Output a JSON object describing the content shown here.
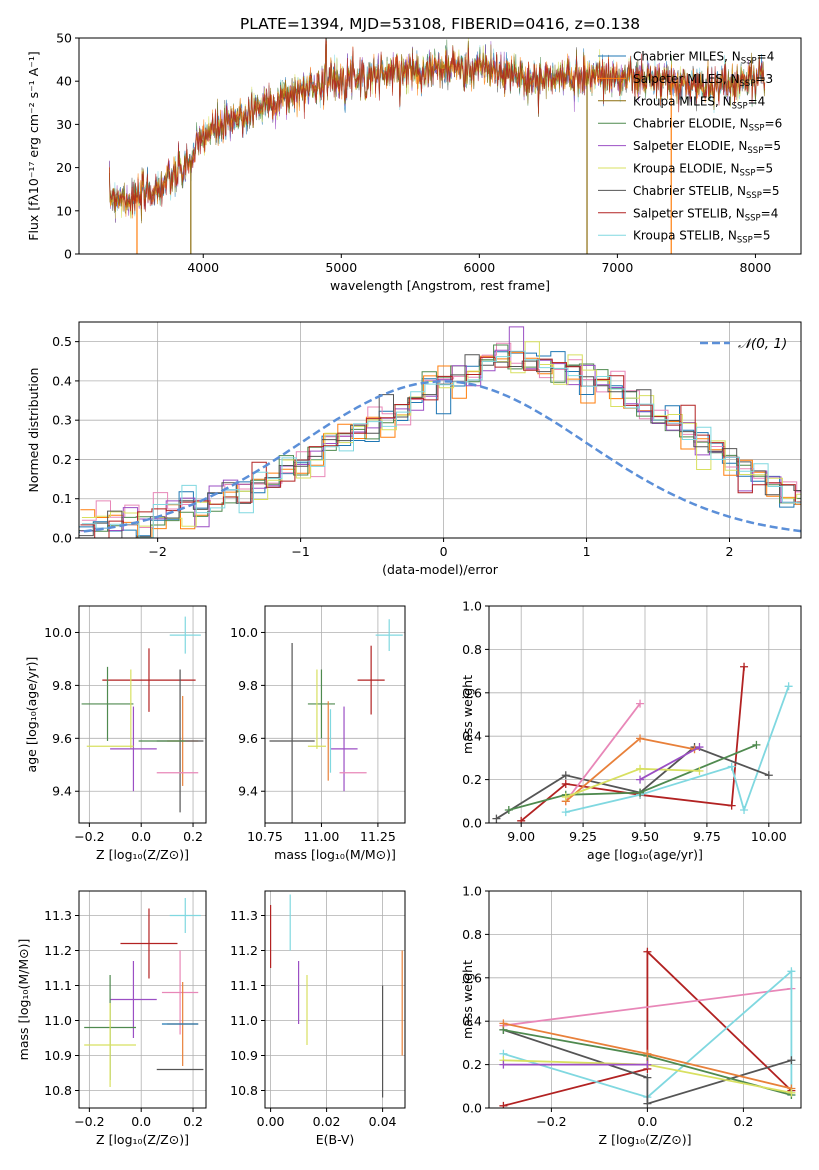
{
  "colors": {
    "Chabrier MILES": "#1f77b4",
    "Salpeter MILES": "#ff7f0e",
    "Kroupa MILES": "#8c6d0e",
    "Chabrier ELODIE": "#4f8a4f",
    "Salpeter ELODIE": "#9b4fc4",
    "Kroupa ELODIE": "#d8e060",
    "Chabrier STELIB": "#555555",
    "Salpeter STELIB": "#b22222",
    "Kroupa STELIB": "#80d8e0",
    "pink": "#e887b8",
    "orange": "#e8803a",
    "gauss": "#5b8fd8"
  },
  "chart_data": [
    {
      "id": "spectrum",
      "type": "line",
      "title": "PLATE=1394, MJD=53108, FIBERID=0416, z=0.138",
      "xlabel": "wavelength [Angstrom, rest frame]",
      "ylabel": "Flux [fλ10⁻¹⁷ erg cm⁻² s⁻¹ A⁻¹]",
      "xlim": [
        3100,
        8330
      ],
      "ylim": [
        0,
        50
      ],
      "xticks": [
        4000,
        5000,
        6000,
        7000,
        8000
      ],
      "yticks": [
        0,
        10,
        20,
        30,
        40,
        50
      ],
      "legend_position": "top-right",
      "continuum_x": [
        3320,
        3500,
        3700,
        3900,
        4000,
        4200,
        4400,
        4600,
        4800,
        5000,
        5200,
        5500,
        5800,
        6000,
        6200,
        6400,
        6600,
        6800,
        7000,
        7200,
        7400,
        7600,
        7800,
        8070
      ],
      "continuum_y": [
        13.5,
        12.8,
        15.5,
        21,
        27.5,
        30.5,
        34,
        36.5,
        39,
        41,
        41.5,
        42.5,
        43,
        43.5,
        41.5,
        40,
        41,
        41.5,
        41,
        40.5,
        39.5,
        39,
        39.5,
        41
      ],
      "features": [
        {
          "x": 4890,
          "y": 49.5,
          "label": ""
        },
        {
          "x": 5180,
          "y": 36.5,
          "label": ""
        },
        {
          "x": 5890,
          "y": 38.5,
          "label": ""
        }
      ],
      "drops": [
        {
          "x": 3520,
          "series": "Salpeter MILES"
        },
        {
          "x": 3910,
          "series": "Kroupa MILES"
        },
        {
          "x": 6780,
          "series": "Kroupa MILES"
        },
        {
          "x": 7390,
          "series": "Salpeter MILES"
        }
      ],
      "series": [
        {
          "name": "Chabrier MILES, N<sub>SSP</sub>=4",
          "label_main": "Chabrier MILES, N",
          "label_sub": "SSP",
          "label_tail": "=4"
        },
        {
          "name": "Salpeter MILES, N_SSP=3",
          "label_main": "Salpeter MILES, N",
          "label_sub": "SSP",
          "label_tail": "=3"
        },
        {
          "name": "Kroupa MILES, N_SSP=4",
          "label_main": "Kroupa MILES, N",
          "label_sub": "SSP",
          "label_tail": "=4"
        },
        {
          "name": "Chabrier ELODIE, N_SSP=6",
          "label_main": "Chabrier ELODIE, N",
          "label_sub": "SSP",
          "label_tail": "=6"
        },
        {
          "name": "Salpeter ELODIE, N_SSP=5",
          "label_main": "Salpeter ELODIE, N",
          "label_sub": "SSP",
          "label_tail": "=5"
        },
        {
          "name": "Kroupa ELODIE, N_SSP=5",
          "label_main": "Kroupa ELODIE, N",
          "label_sub": "SSP",
          "label_tail": "=5"
        },
        {
          "name": "Chabrier STELIB, N_SSP=5",
          "label_main": "Chabrier STELIB, N",
          "label_sub": "SSP",
          "label_tail": "=5"
        },
        {
          "name": "Salpeter STELIB, N_SSP=4",
          "label_main": "Salpeter STELIB, N",
          "label_sub": "SSP",
          "label_tail": "=4"
        },
        {
          "name": "Kroupa STELIB, N_SSP=5",
          "label_main": "Kroupa STELIB, N",
          "label_sub": "SSP",
          "label_tail": "=5"
        }
      ]
    },
    {
      "id": "histogram",
      "type": "bar",
      "xlabel": "(data-model)/error",
      "ylabel": "Normed distribution",
      "xlim": [
        -2.55,
        2.5
      ],
      "ylim": [
        0,
        0.55
      ],
      "xticks": [
        -2,
        -1,
        0,
        1,
        2
      ],
      "yticks": [
        0.0,
        0.1,
        0.2,
        0.3,
        0.4,
        0.5
      ],
      "legend": "𝒩(0, 1)",
      "bin_width": 0.1,
      "bin_start": -2.55,
      "profile": [
        0.03,
        0.03,
        0.035,
        0.04,
        0.045,
        0.05,
        0.06,
        0.07,
        0.08,
        0.09,
        0.11,
        0.12,
        0.13,
        0.15,
        0.17,
        0.19,
        0.21,
        0.23,
        0.25,
        0.27,
        0.29,
        0.31,
        0.33,
        0.35,
        0.38,
        0.4,
        0.41,
        0.42,
        0.44,
        0.45,
        0.47,
        0.45,
        0.44,
        0.43,
        0.42,
        0.41,
        0.4,
        0.38,
        0.36,
        0.34,
        0.32,
        0.29,
        0.27,
        0.24,
        0.22,
        0.19,
        0.17,
        0.15,
        0.13,
        0.11,
        0.095,
        0.08,
        0.07,
        0.06,
        0.05,
        0.04,
        0.035,
        0.03,
        0.025,
        0.02,
        0.015
      ]
    },
    {
      "id": "age_vs_Z",
      "type": "scatter",
      "xlabel": "Z [log₁₀(Z/Z⊙)]",
      "ylabel": "age  [log₁₀(age/yr)]",
      "xlim": [
        -0.24,
        0.25
      ],
      "ylim": [
        9.28,
        10.1
      ],
      "xticks": [
        -0.2,
        0.0,
        0.2
      ],
      "yticks": [
        9.4,
        9.6,
        9.8,
        10.0
      ],
      "points": [
        {
          "c": "#80d8e0",
          "x": 0.17,
          "y": 9.99,
          "xe": 0.06,
          "ye": 0.07
        },
        {
          "c": "#b22222",
          "x": 0.03,
          "y": 9.82,
          "xe": 0.18,
          "ye": 0.12
        },
        {
          "c": "#4f8a4f",
          "x": -0.13,
          "y": 9.73,
          "xe": 0.1,
          "ye": 0.14
        },
        {
          "c": "#d8e060",
          "x": -0.04,
          "y": 9.71,
          "xe": 0.0,
          "ye": 0.15
        },
        {
          "c": "#e8803a",
          "x": 0.16,
          "y": 9.59,
          "xe": 0.06,
          "ye": 0.17
        },
        {
          "c": "#555555",
          "x": 0.15,
          "y": 9.59,
          "xe": 0.09,
          "ye": 0.27
        },
        {
          "c": "#9b4fc4",
          "x": -0.03,
          "y": 9.56,
          "xe": 0.09,
          "ye": 0.16
        },
        {
          "c": "#d8e060",
          "x": -0.12,
          "y": 9.57,
          "xe": 0.09,
          "ye": 0.0
        },
        {
          "c": "#e887b8",
          "x": 0.14,
          "y": 9.47,
          "xe": 0.08,
          "ye": 0.0
        },
        {
          "c": "#4f8a4f",
          "x": 0.08,
          "y": 9.59,
          "xe": 0.09,
          "ye": 0.0
        }
      ]
    },
    {
      "id": "age_vs_mass",
      "type": "scatter",
      "xlabel": "mass [log₁₀(M/M⊙)]",
      "ylabel": "",
      "xlim": [
        10.75,
        11.37
      ],
      "ylim": [
        9.28,
        10.1
      ],
      "xticks": [
        10.75,
        11.0,
        11.25
      ],
      "yticks": [
        9.4,
        9.6,
        9.8,
        10.0
      ],
      "points": [
        {
          "c": "#80d8e0",
          "x": 11.3,
          "y": 9.99,
          "xe": 0.06,
          "ye": 0.06
        },
        {
          "c": "#b22222",
          "x": 11.22,
          "y": 9.82,
          "xe": 0.06,
          "ye": 0.13
        },
        {
          "c": "#4f8a4f",
          "x": 11.0,
          "y": 9.73,
          "xe": 0.06,
          "ye": 0.13
        },
        {
          "c": "#d8e060",
          "x": 10.98,
          "y": 9.71,
          "xe": 0.0,
          "ye": 0.15
        },
        {
          "c": "#555555",
          "x": 10.87,
          "y": 9.59,
          "xe": 0.1,
          "ye": 0.37
        },
        {
          "c": "#e8803a",
          "x": 11.03,
          "y": 9.59,
          "xe": 0.0,
          "ye": 0.15
        },
        {
          "c": "#9b4fc4",
          "x": 11.1,
          "y": 9.56,
          "xe": 0.06,
          "ye": 0.16
        },
        {
          "c": "#d8e060",
          "x": 10.98,
          "y": 9.57,
          "xe": 0.04,
          "ye": 0.0
        },
        {
          "c": "#e887b8",
          "x": 11.14,
          "y": 9.47,
          "xe": 0.06,
          "ye": 0.0
        },
        {
          "c": "#80d8e0",
          "x": 11.04,
          "y": 9.59,
          "xe": 0.0,
          "ye": 0.12
        }
      ]
    },
    {
      "id": "weight_vs_age",
      "type": "line",
      "xlabel": "age  [log₁₀(age/yr)]",
      "ylabel": "mass weight",
      "xlim": [
        8.87,
        10.13
      ],
      "ylim": [
        0,
        1
      ],
      "xticks": [
        9.0,
        9.25,
        9.5,
        9.75,
        10.0
      ],
      "yticks": [
        0.0,
        0.2,
        0.4,
        0.6,
        0.8,
        1.0
      ],
      "series": [
        {
          "c": "#b22222",
          "x": [
            9.0,
            9.18,
            9.48,
            9.85,
            9.9
          ],
          "y": [
            0.01,
            0.18,
            0.13,
            0.08,
            0.72
          ]
        },
        {
          "c": "#80d8e0",
          "x": [
            9.18,
            9.48,
            9.85,
            9.9,
            10.08
          ],
          "y": [
            0.05,
            0.13,
            0.26,
            0.06,
            0.63
          ]
        },
        {
          "c": "#555555",
          "x": [
            8.9,
            9.18,
            9.48,
            9.7,
            10.0
          ],
          "y": [
            0.02,
            0.22,
            0.14,
            0.35,
            0.22
          ]
        },
        {
          "c": "#4f8a4f",
          "x": [
            8.95,
            9.18,
            9.48,
            9.95
          ],
          "y": [
            0.06,
            0.13,
            0.14,
            0.36
          ]
        },
        {
          "c": "#e887b8",
          "x": [
            9.18,
            9.48
          ],
          "y": [
            0.1,
            0.55
          ]
        },
        {
          "c": "#e8803a",
          "x": [
            9.18,
            9.48,
            9.7
          ],
          "y": [
            0.1,
            0.39,
            0.34
          ]
        },
        {
          "c": "#d8e060",
          "x": [
            9.18,
            9.48,
            9.72
          ],
          "y": [
            0.12,
            0.25,
            0.24
          ]
        },
        {
          "c": "#9b4fc4",
          "x": [
            9.48,
            9.72
          ],
          "y": [
            0.2,
            0.35
          ]
        }
      ]
    },
    {
      "id": "mass_vs_Z",
      "type": "scatter",
      "xlabel": "Z [log₁₀(Z/Z⊙)]",
      "ylabel": "mass [log₁₀(M/M⊙)]",
      "xlim": [
        -0.24,
        0.25
      ],
      "ylim": [
        10.75,
        11.37
      ],
      "xticks": [
        -0.2,
        0.0,
        0.2
      ],
      "yticks": [
        10.8,
        10.9,
        11.0,
        11.1,
        11.2,
        11.3
      ],
      "points": [
        {
          "c": "#80d8e0",
          "x": 0.17,
          "y": 11.3,
          "xe": 0.06,
          "ye": 0.05
        },
        {
          "c": "#b22222",
          "x": 0.03,
          "y": 11.22,
          "xe": 0.11,
          "ye": 0.1
        },
        {
          "c": "#e887b8",
          "x": 0.15,
          "y": 11.08,
          "xe": 0.07,
          "ye": 0.12
        },
        {
          "c": "#9b4fc4",
          "x": -0.03,
          "y": 11.06,
          "xe": 0.09,
          "ye": 0.11
        },
        {
          "c": "#4f8a4f",
          "x": -0.12,
          "y": 10.98,
          "xe": 0.1,
          "ye": 0.15
        },
        {
          "c": "#e8803a",
          "x": 0.16,
          "y": 10.99,
          "xe": 0.06,
          "ye": 0.12
        },
        {
          "c": "#1f77b4",
          "x": 0.15,
          "y": 10.99,
          "xe": 0.07,
          "ye": 0.0
        },
        {
          "c": "#d8e060",
          "x": -0.12,
          "y": 10.93,
          "xe": 0.1,
          "ye": 0.12
        },
        {
          "c": "#555555",
          "x": 0.15,
          "y": 10.86,
          "xe": 0.09,
          "ye": 0.0
        }
      ]
    },
    {
      "id": "mass_vs_ebv",
      "type": "scatter",
      "xlabel": "E(B-V)",
      "ylabel": "",
      "xlim": [
        -0.002,
        0.048
      ],
      "ylim": [
        10.75,
        11.37
      ],
      "xticks": [
        0.0,
        0.02,
        0.04
      ],
      "yticks": [
        10.8,
        10.9,
        11.0,
        11.1,
        11.2,
        11.3
      ],
      "points": [
        {
          "c": "#b22222",
          "x": 0.0,
          "y": 11.24,
          "xe": 0.0,
          "ye": 0.09
        },
        {
          "c": "#80d8e0",
          "x": 0.007,
          "y": 11.28,
          "xe": 0.0,
          "ye": 0.08
        },
        {
          "c": "#9b4fc4",
          "x": 0.01,
          "y": 11.08,
          "xe": 0.0,
          "ye": 0.09
        },
        {
          "c": "#d8e060",
          "x": 0.013,
          "y": 11.03,
          "xe": 0.0,
          "ye": 0.1
        },
        {
          "c": "#555555",
          "x": 0.04,
          "y": 10.94,
          "xe": 0.0,
          "ye": 0.16
        },
        {
          "c": "#e8803a",
          "x": 0.047,
          "y": 11.05,
          "xe": 0.0,
          "ye": 0.15
        }
      ]
    },
    {
      "id": "weight_vs_Z",
      "type": "line",
      "xlabel": "Z [log₁₀(Z/Z⊙)]",
      "ylabel": "mass weight",
      "xlim": [
        -0.33,
        0.32
      ],
      "ylim": [
        0,
        1
      ],
      "xticks": [
        -0.2,
        0.0,
        0.2
      ],
      "yticks": [
        0.0,
        0.2,
        0.4,
        0.6,
        0.8,
        1.0
      ],
      "series": [
        {
          "c": "#b22222",
          "x": [
            -0.3,
            0.0,
            0.0,
            0.3
          ],
          "y": [
            0.01,
            0.18,
            0.72,
            0.08
          ]
        },
        {
          "c": "#e887b8",
          "x": [
            -0.3,
            0.3
          ],
          "y": [
            0.38,
            0.55
          ]
        },
        {
          "c": "#80d8e0",
          "x": [
            -0.3,
            0.0,
            0.3,
            0.3
          ],
          "y": [
            0.25,
            0.05,
            0.63,
            0.06
          ]
        },
        {
          "c": "#555555",
          "x": [
            -0.3,
            0.0,
            0.0,
            0.3
          ],
          "y": [
            0.36,
            0.14,
            0.02,
            0.22
          ]
        },
        {
          "c": "#4f8a4f",
          "x": [
            -0.3,
            0.0,
            0.3
          ],
          "y": [
            0.36,
            0.24,
            0.06
          ]
        },
        {
          "c": "#e8803a",
          "x": [
            -0.3,
            0.0,
            0.3
          ],
          "y": [
            0.39,
            0.25,
            0.09
          ]
        },
        {
          "c": "#d8e060",
          "x": [
            -0.3,
            0.0,
            0.3
          ],
          "y": [
            0.22,
            0.2,
            0.07
          ]
        },
        {
          "c": "#9b4fc4",
          "x": [
            -0.3,
            0.0
          ],
          "y": [
            0.2,
            0.2
          ]
        }
      ]
    }
  ]
}
